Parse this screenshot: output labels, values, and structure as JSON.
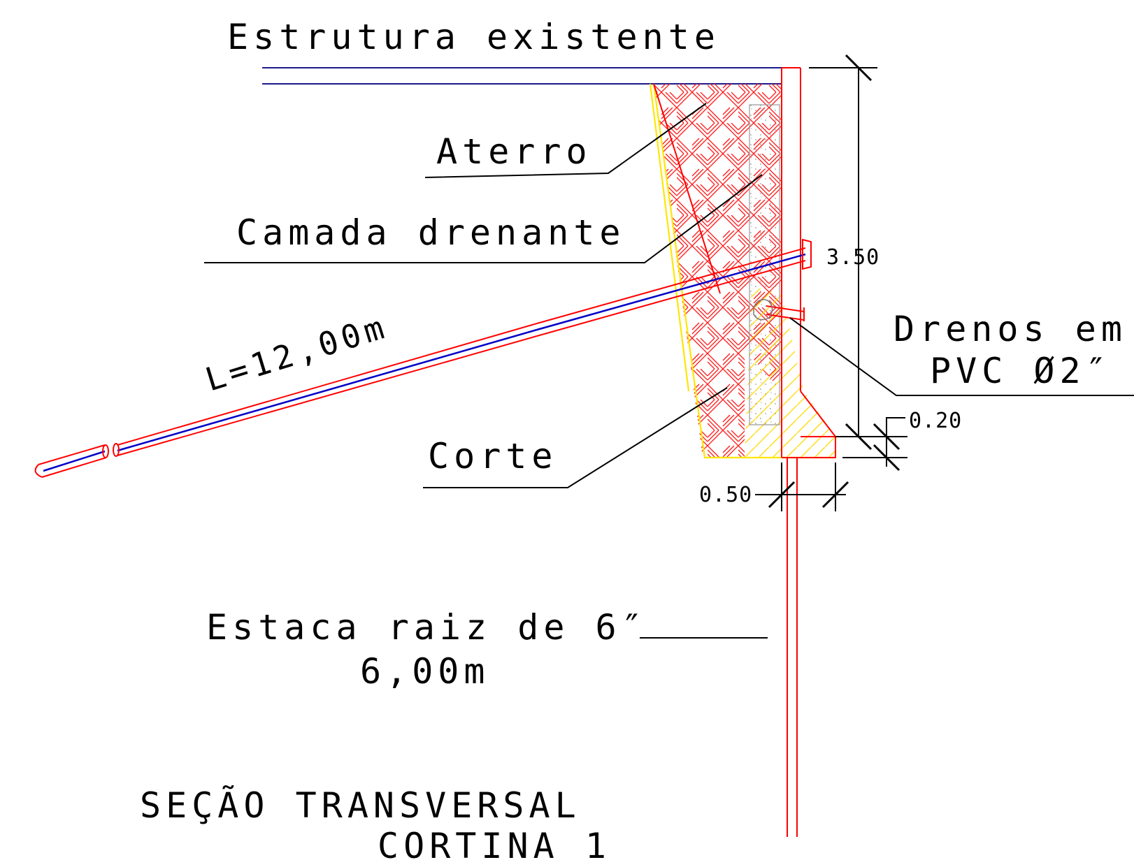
{
  "labels": {
    "existing_structure": "Estrutura existente",
    "backfill": "Aterro",
    "drain_layer": "Camada drenante",
    "anchor_length": "L=12,00m",
    "drains_line1": "Drenos em",
    "drains_line2": "PVC Ø2″",
    "cut": "Corte",
    "pile_line1": "Estaca raiz de 6″",
    "pile_line2": "6,00m"
  },
  "dimensions": {
    "height": "3.50",
    "footing_thickness": "0.20",
    "footing_width": "0.50"
  },
  "title": {
    "line1": "SEÇÃO TRANSVERSAL",
    "line2": "CORTINA 1"
  },
  "colors": {
    "concrete_outline": "#ff0000",
    "anchor_bar": "#0000c8",
    "structure_line": "#1a1a8c",
    "cut_line": "#ffe600",
    "leaders": "#000000"
  }
}
